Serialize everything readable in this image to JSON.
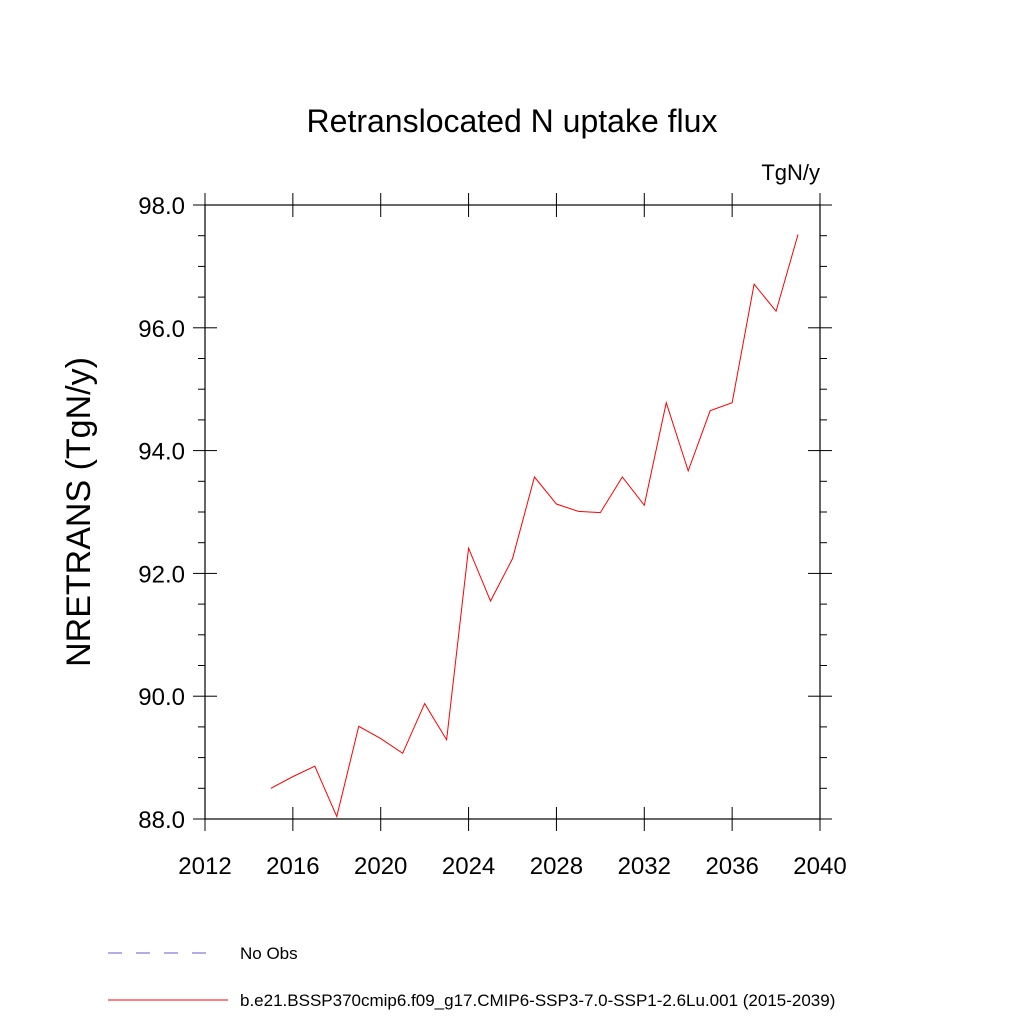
{
  "chart_data": {
    "type": "line",
    "title": "Retranslocated N uptake flux",
    "units": "TgN/y",
    "ylabel": "NRETRANS  (TgN/y)",
    "xlabel": "",
    "xlim": [
      2012,
      2040
    ],
    "ylim": [
      88.0,
      98.0
    ],
    "x_ticks": [
      2012,
      2016,
      2020,
      2024,
      2028,
      2032,
      2036,
      2040
    ],
    "x_tick_labels": [
      "2012",
      "2016",
      "2020",
      "2024",
      "2028",
      "2032",
      "2036",
      "2040"
    ],
    "y_ticks": [
      88.0,
      90.0,
      92.0,
      94.0,
      96.0,
      98.0
    ],
    "y_tick_labels": [
      "88.0",
      "90.0",
      "92.0",
      "94.0",
      "96.0",
      "98.0"
    ],
    "grid": false,
    "legend_position": "bottom",
    "series": [
      {
        "name": "b.e21.BSSP370cmip6.f09_g17.CMIP6-SSP3-7.0-SSP1-2.6Lu.001 (2015-2039)",
        "color": "#ff0000",
        "style": "solid",
        "x": [
          2015,
          2016,
          2017,
          2018,
          2019,
          2020,
          2021,
          2022,
          2023,
          2024,
          2025,
          2026,
          2027,
          2028,
          2029,
          2030,
          2031,
          2032,
          2033,
          2034,
          2035,
          2036,
          2037,
          2038,
          2039
        ],
        "values": [
          88.5,
          88.69,
          88.86,
          88.04,
          89.51,
          89.31,
          89.07,
          89.88,
          89.29,
          92.41,
          91.55,
          92.24,
          93.57,
          93.13,
          93.01,
          92.99,
          93.57,
          93.11,
          94.78,
          93.67,
          94.65,
          94.78,
          96.71,
          96.27,
          97.52
        ]
      }
    ],
    "legend": [
      {
        "label": "No Obs",
        "color": "#6a5acd",
        "style": "dashed"
      },
      {
        "label": "b.e21.BSSP370cmip6.f09_g17.CMIP6-SSP3-7.0-SSP1-2.6Lu.001 (2015-2039)",
        "color": "#ff0000",
        "style": "solid"
      }
    ]
  }
}
